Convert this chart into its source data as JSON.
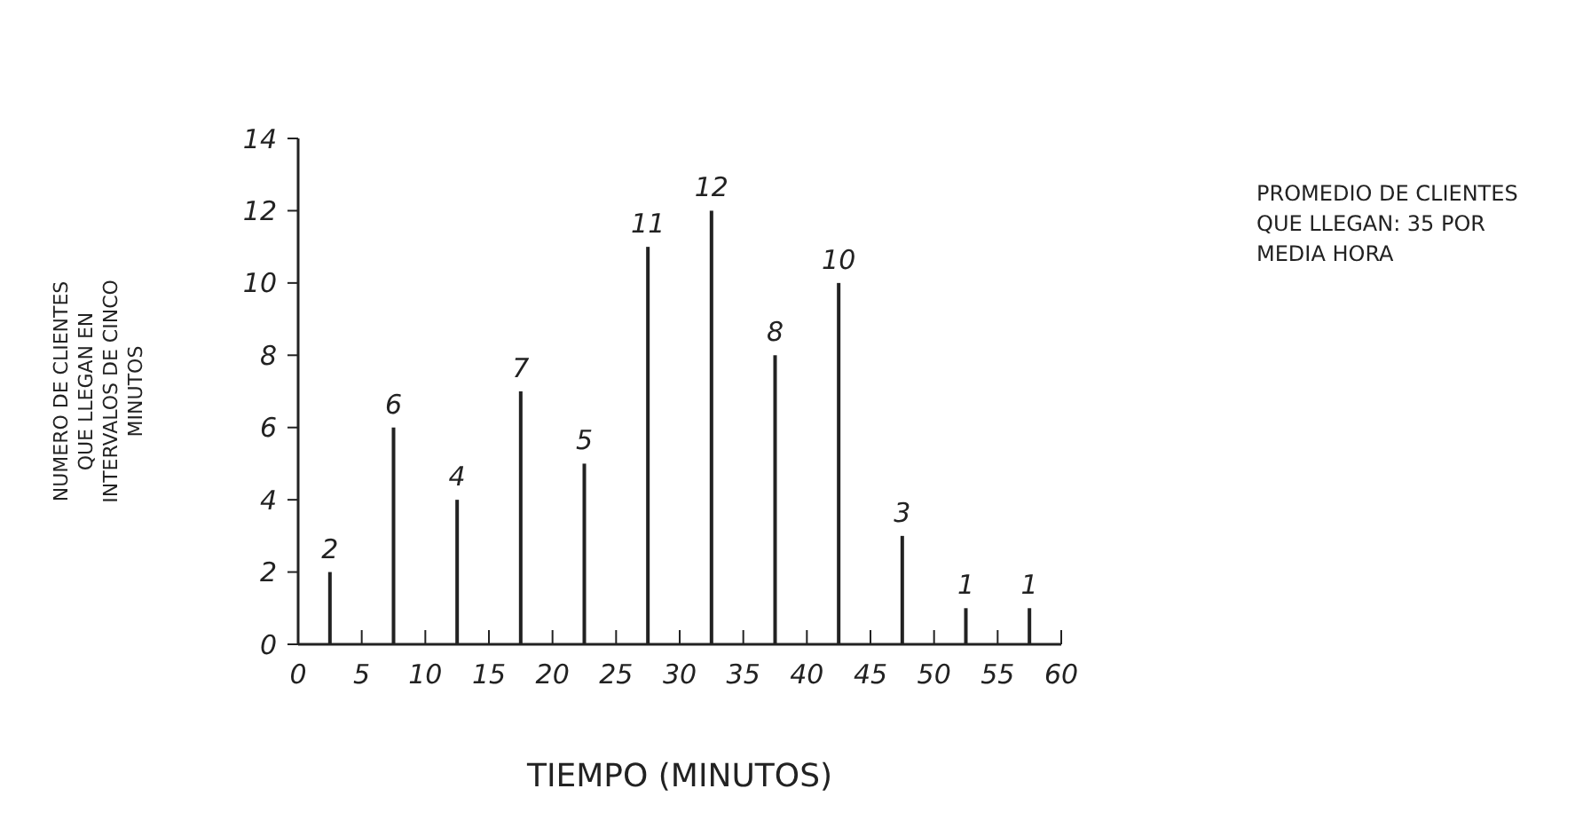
{
  "chart_data": {
    "type": "bar",
    "xlabel": "TIEMPO (MINUTOS)",
    "ylabel": "NUMERO DE CLIENTES QUE LLEGAN EN INTERVALOS DE CINCO MINUTOS",
    "x": [
      2.5,
      7.5,
      12.5,
      17.5,
      22.5,
      27.5,
      32.5,
      37.5,
      42.5,
      47.5,
      52.5,
      57.5
    ],
    "values": [
      2,
      6,
      4,
      7,
      5,
      11,
      12,
      8,
      10,
      3,
      1,
      1
    ],
    "color": "#222222",
    "data_labels": true,
    "grid": false,
    "xlim": [
      0,
      60
    ],
    "xticks": [
      0,
      5,
      10,
      15,
      20,
      25,
      30,
      35,
      40,
      45,
      50,
      55,
      60
    ],
    "ylim": [
      0,
      14
    ],
    "yticks": [
      0,
      2,
      4,
      6,
      8,
      10,
      12,
      14
    ],
    "annotations": [
      "PROMEDIO DE CLIENTES QUE LLEGAN: 35 POR MEDIA HORA"
    ]
  }
}
